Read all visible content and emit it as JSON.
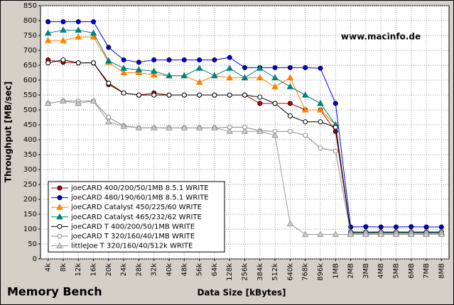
{
  "chart_data": {
    "type": "line",
    "title": "Memory Bench",
    "watermark": "www.macinfo.de",
    "x_label": "Data Size [kBytes]",
    "y_label": "Throughput [MB/sec]",
    "categories": [
      "4k",
      "8k",
      "12k",
      "16k",
      "20k",
      "24k",
      "28k",
      "32k",
      "40k",
      "48k",
      "56k",
      "64k",
      "128k",
      "256k",
      "384k",
      "512k",
      "640k",
      "768k",
      "896k",
      "1MB",
      "2MB",
      "3MB",
      "4MB",
      "5MB",
      "6MB",
      "7MB",
      "8MB"
    ],
    "ylim": [
      0,
      850
    ],
    "yticks": [
      0,
      50,
      100,
      150,
      200,
      250,
      300,
      350,
      400,
      450,
      500,
      550,
      600,
      650,
      700,
      750,
      800,
      850
    ],
    "grid": true,
    "legend": "lower left",
    "series": [
      {
        "name": "joeCARD 400/200/50/1MB 8.5.1 WRITE",
        "color": "#cc0000",
        "marker": "circle",
        "values": [
          668,
          660,
          658,
          658,
          585,
          557,
          550,
          557,
          550,
          550,
          550,
          550,
          550,
          550,
          522,
          522,
          522,
          500,
          500,
          428,
          90,
          90,
          90,
          90,
          90,
          90,
          90
        ]
      },
      {
        "name": "joeCARD 480/190/60/1MB 8.5.1 WRITE",
        "color": "#0000ff",
        "marker": "circle",
        "values": [
          796,
          796,
          796,
          796,
          710,
          668,
          660,
          668,
          668,
          668,
          668,
          668,
          676,
          642,
          642,
          642,
          642,
          642,
          640,
          522,
          107,
          108,
          107,
          107,
          108,
          107,
          107
        ]
      },
      {
        "name": "joeCARD Catalyst 450/225/60 WRITE",
        "color": "#ff8000",
        "marker": "triangle",
        "values": [
          733,
          733,
          745,
          745,
          660,
          625,
          625,
          618,
          615,
          615,
          593,
          615,
          608,
          608,
          608,
          578,
          608,
          500,
          500,
          450,
          88,
          88,
          88,
          88,
          88,
          88,
          88
        ]
      },
      {
        "name": "joeCARD Catalyst 465/232/62 WRITE",
        "color": "#008080",
        "marker": "triangle",
        "values": [
          758,
          768,
          768,
          758,
          665,
          640,
          635,
          630,
          615,
          615,
          640,
          615,
          640,
          608,
          640,
          608,
          578,
          550,
          522,
          450,
          88,
          88,
          88,
          88,
          88,
          88,
          88
        ]
      },
      {
        "name": "joeCARD T 400/200/50/1MB WRITE",
        "color": "#000000",
        "marker": "open-circle",
        "values": [
          658,
          668,
          658,
          658,
          590,
          557,
          550,
          550,
          550,
          550,
          550,
          550,
          550,
          550,
          543,
          522,
          480,
          460,
          460,
          442,
          90,
          90,
          90,
          90,
          90,
          90,
          90
        ]
      },
      {
        "name": "joeCARD T 320/160/40/1MB WRITE",
        "color": "#888888",
        "marker": "open-circle",
        "values": [
          522,
          530,
          530,
          530,
          475,
          447,
          440,
          440,
          440,
          440,
          440,
          440,
          442,
          442,
          430,
          428,
          428,
          415,
          372,
          362,
          85,
          85,
          85,
          85,
          85,
          85,
          85
        ]
      },
      {
        "name": "littleJoe T 320/160/40/512k WRITE",
        "color": "#999999",
        "marker": "open-triangle",
        "values": [
          522,
          530,
          522,
          530,
          460,
          445,
          440,
          440,
          440,
          440,
          440,
          440,
          428,
          428,
          428,
          415,
          118,
          82,
          82,
          82,
          82,
          82,
          82,
          82,
          82,
          82,
          82
        ]
      }
    ]
  }
}
